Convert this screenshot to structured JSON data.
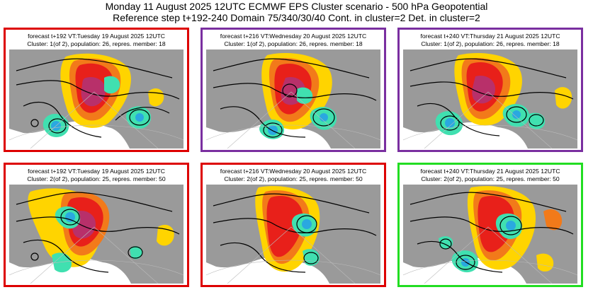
{
  "header": {
    "title_line1": "Monday 11 August 2025 12UTC ECMWF EPS Cluster scenario - 500 hPa Geopotential",
    "title_line2": "Reference step t+192-240 Domain 75/340/30/40 Cont. in cluster=2 Det. in cluster=2"
  },
  "colors": {
    "cluster1_frame_left": "#dd0000",
    "cluster1_frame_other": "#7a2fa0",
    "cluster2_frame_left": "#dd0000",
    "cluster2_frame_right": "#22dd22",
    "anomaly_strong_pos": "#b8306a",
    "anomaly_pos": "#e8201a",
    "anomaly_mid": "#f27a1a",
    "anomaly_weak": "#ffd400",
    "anomaly_neg": "#40e0b0",
    "anomaly_strong_neg": "#2aa8e0",
    "land": "#9a9a9a"
  },
  "panels": [
    {
      "line1": "forecast t+192 VT:Tuesday 19 August 2025 12UTC",
      "line2": "Cluster: 1(of 2), population: 26, repres. member: 18"
    },
    {
      "line1": "forecast t+216 VT:Wednesday 20 August 2025 12UTC",
      "line2": "Cluster: 1(of 2), population: 26, repres. member: 18"
    },
    {
      "line1": "forecast t+240 VT:Thursday 21 August 2025 12UTC",
      "line2": "Cluster: 1(of 2), population: 26, repres. member: 18"
    },
    {
      "line1": "forecast t+192 VT:Tuesday 19 August 2025 12UTC",
      "line2": "Cluster: 2(of 2), population: 25, repres. member: 50"
    },
    {
      "line1": "forecast t+216 VT:Wednesday 20 August 2025 12UTC",
      "line2": "Cluster: 2(of 2), population: 25, repres. member: 50"
    },
    {
      "line1": "forecast t+240 VT:Thursday 21 August 2025 12UTC",
      "line2": "Cluster: 2(of 2), population: 25, repres. member: 50"
    }
  ]
}
